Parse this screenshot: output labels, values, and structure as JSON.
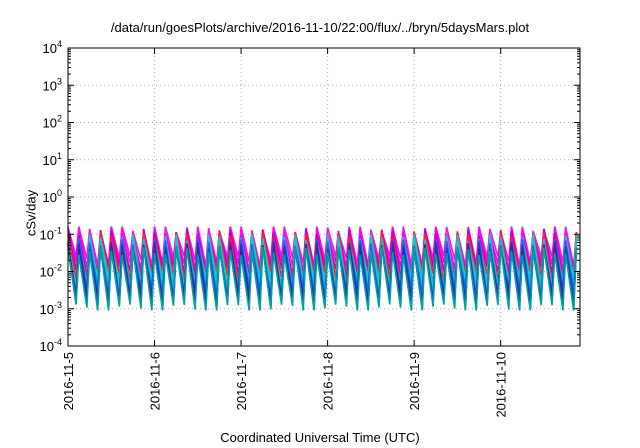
{
  "chart_data": {
    "type": "line",
    "title": "/data/run/goesPlots/archive/2016-11-10/22:00/flux/../bryn/5daysMars.plot",
    "xlabel": "Coordinated Universal Time (UTC)",
    "ylabel": "cSv/day",
    "yscale": "log",
    "ylim": [
      "1e-4",
      "1e4"
    ],
    "y_ticks": [
      {
        "exp": "4",
        "value": 10000
      },
      {
        "exp": "3",
        "value": 1000
      },
      {
        "exp": "2",
        "value": 100
      },
      {
        "exp": "1",
        "value": 10
      },
      {
        "exp": "0",
        "value": 1
      },
      {
        "exp": "-1",
        "value": 0.1
      },
      {
        "exp": "-2",
        "value": 0.01
      },
      {
        "exp": "-3",
        "value": 0.001
      },
      {
        "exp": "-4",
        "value": 0.0001
      }
    ],
    "x_ticks": [
      "2016-11-5",
      "2016-11-6",
      "2016-11-7",
      "2016-11-8",
      "2016-11-9",
      "2016-11-10"
    ],
    "xlim": [
      "2016-11-05 00:00",
      "2016-11-10 22:00"
    ],
    "grid": true,
    "legend": "none",
    "oscillation": {
      "cycles_per_day": 8,
      "peak_range": [
        0.02,
        0.15
      ],
      "trough_range": [
        0.001,
        0.02
      ]
    },
    "series_colors": [
      "#e020e0",
      "#ff00ff",
      "#c000c0",
      "#ff2020",
      "#20c0c0",
      "#00d0d0",
      "#2060ff",
      "#1040c0",
      "#4020a0",
      "#00a0a0"
    ]
  }
}
